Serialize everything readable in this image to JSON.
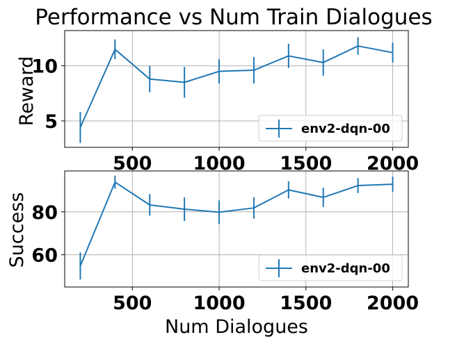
{
  "chart_data": [
    {
      "type": "line",
      "title": "Performance vs Num Train Dialogues",
      "xlabel": "",
      "ylabel": "Reward",
      "x": [
        200,
        400,
        600,
        800,
        1000,
        1200,
        1400,
        1600,
        1800,
        2000
      ],
      "series": [
        {
          "name": "env2-dqn-00",
          "color": "#1f77b4",
          "values": [
            4.4,
            11.5,
            8.8,
            8.5,
            9.5,
            9.6,
            10.9,
            10.3,
            11.8,
            11.2
          ],
          "errors": [
            1.4,
            0.9,
            1.2,
            1.4,
            1.1,
            1.2,
            1.1,
            1.2,
            0.8,
            0.9
          ]
        }
      ],
      "xticks": [
        "500",
        "1000",
        "1500",
        "2000"
      ],
      "yticks": [
        "5",
        "10"
      ],
      "xlim": [
        110,
        2090
      ],
      "ylim": [
        2.6,
        13.2
      ],
      "grid": true,
      "legend": "lower-right"
    },
    {
      "type": "line",
      "title": "",
      "xlabel": "Num Dialogues",
      "ylabel": "Success",
      "x": [
        200,
        400,
        600,
        800,
        1000,
        1200,
        1400,
        1600,
        1800,
        2000
      ],
      "series": [
        {
          "name": "env2-dqn-00",
          "color": "#1f77b4",
          "values": [
            54.8,
            93.8,
            83.2,
            81.2,
            79.8,
            81.8,
            90.2,
            86.7,
            92.2,
            92.8
          ],
          "errors": [
            6.3,
            3.0,
            5.0,
            5.5,
            5.5,
            5.0,
            4.0,
            4.5,
            3.5,
            3.5
          ]
        }
      ],
      "xticks": [
        "500",
        "1000",
        "1500",
        "2000"
      ],
      "yticks": [
        "60",
        "80"
      ],
      "xlim": [
        110,
        2090
      ],
      "ylim": [
        45,
        99
      ],
      "grid": true,
      "legend": "lower-right"
    }
  ]
}
